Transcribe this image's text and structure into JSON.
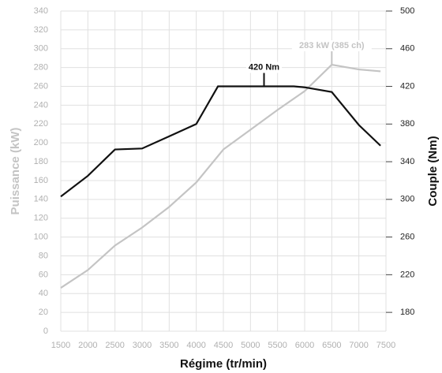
{
  "chart_data": {
    "type": "line",
    "xlabel": "Régime (tr/min)",
    "ylabel": "Puissance (kW)",
    "y2label": "Couple (Nm)",
    "xlim": [
      1500,
      7500
    ],
    "xticks": [
      1500,
      2000,
      2500,
      3000,
      3500,
      4000,
      4500,
      5000,
      5500,
      6000,
      6500,
      7000,
      7500
    ],
    "ylim": [
      0,
      340
    ],
    "yticks": [
      0,
      20,
      40,
      60,
      80,
      100,
      120,
      140,
      160,
      180,
      200,
      220,
      240,
      260,
      280,
      300,
      320,
      340
    ],
    "y2lim": [
      160,
      500
    ],
    "y2ticks": [
      180,
      220,
      260,
      300,
      340,
      380,
      420,
      460,
      500
    ],
    "grid": true,
    "series": [
      {
        "name": "Puissance",
        "color": "#c4c4c4",
        "axis": "y",
        "x": [
          1500,
          2000,
          2500,
          3000,
          3500,
          4000,
          4500,
          5000,
          5500,
          6000,
          6500,
          7000,
          7400
        ],
        "values": [
          46,
          65,
          91,
          110,
          132,
          158,
          193,
          214,
          235,
          255,
          283,
          278,
          276
        ]
      },
      {
        "name": "Couple",
        "color": "#111111",
        "axis": "y2",
        "x": [
          1500,
          2000,
          2500,
          3000,
          3500,
          4000,
          4400,
          5800,
          6000,
          6500,
          7000,
          7400
        ],
        "values": [
          303,
          325,
          353,
          354,
          367,
          380,
          420,
          420,
          419,
          414,
          379,
          357
        ]
      }
    ],
    "annotations": [
      {
        "text": "420 Nm",
        "x": 5250,
        "y": 420,
        "axis": "y2",
        "color": "#111111"
      },
      {
        "text": "283 kW (385 ch)",
        "x": 6500,
        "y": 283,
        "axis": "y",
        "color": "#c4c4c4"
      }
    ]
  }
}
